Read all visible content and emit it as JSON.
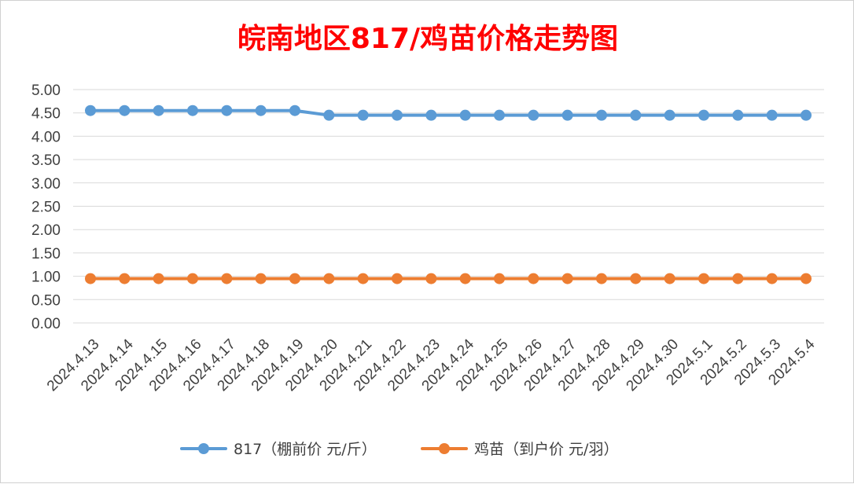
{
  "chart_data": {
    "type": "line",
    "title": "皖南地区817/鸡苗价格走势图",
    "title_color": "#ff0000",
    "xlabel": "",
    "ylabel": "",
    "ylim": [
      0,
      5
    ],
    "y_ticks": [
      "0.00",
      "0.50",
      "1.00",
      "1.50",
      "2.00",
      "2.50",
      "3.00",
      "3.50",
      "4.00",
      "4.50",
      "5.00"
    ],
    "grid": true,
    "legend_position": "bottom",
    "categories": [
      "2024.4.13",
      "2024.4.14",
      "2024.4.15",
      "2024.4.16",
      "2024.4.17",
      "2024.4.18",
      "2024.4.19",
      "2024.4.20",
      "2024.4.21",
      "2024.4.22",
      "2024.4.23",
      "2024.4.24",
      "2024.4.25",
      "2024.4.26",
      "2024.4.27",
      "2024.4.28",
      "2024.4.29",
      "2024.4.30",
      "2024.5.1",
      "2024.5.2",
      "2024.5.3",
      "2024.5.4"
    ],
    "series": [
      {
        "name": "817（棚前价 元/斤）",
        "color": "#5b9bd5",
        "values": [
          4.55,
          4.55,
          4.55,
          4.55,
          4.55,
          4.55,
          4.55,
          4.45,
          4.45,
          4.45,
          4.45,
          4.45,
          4.45,
          4.45,
          4.45,
          4.45,
          4.45,
          4.45,
          4.45,
          4.45,
          4.45,
          4.45
        ]
      },
      {
        "name": "鸡苗（到户价 元/羽）",
        "color": "#ed7d31",
        "values": [
          0.95,
          0.95,
          0.95,
          0.95,
          0.95,
          0.95,
          0.95,
          0.95,
          0.95,
          0.95,
          0.95,
          0.95,
          0.95,
          0.95,
          0.95,
          0.95,
          0.95,
          0.95,
          0.95,
          0.95,
          0.95,
          0.95
        ]
      }
    ],
    "grid_color": "#d9d9d9"
  }
}
